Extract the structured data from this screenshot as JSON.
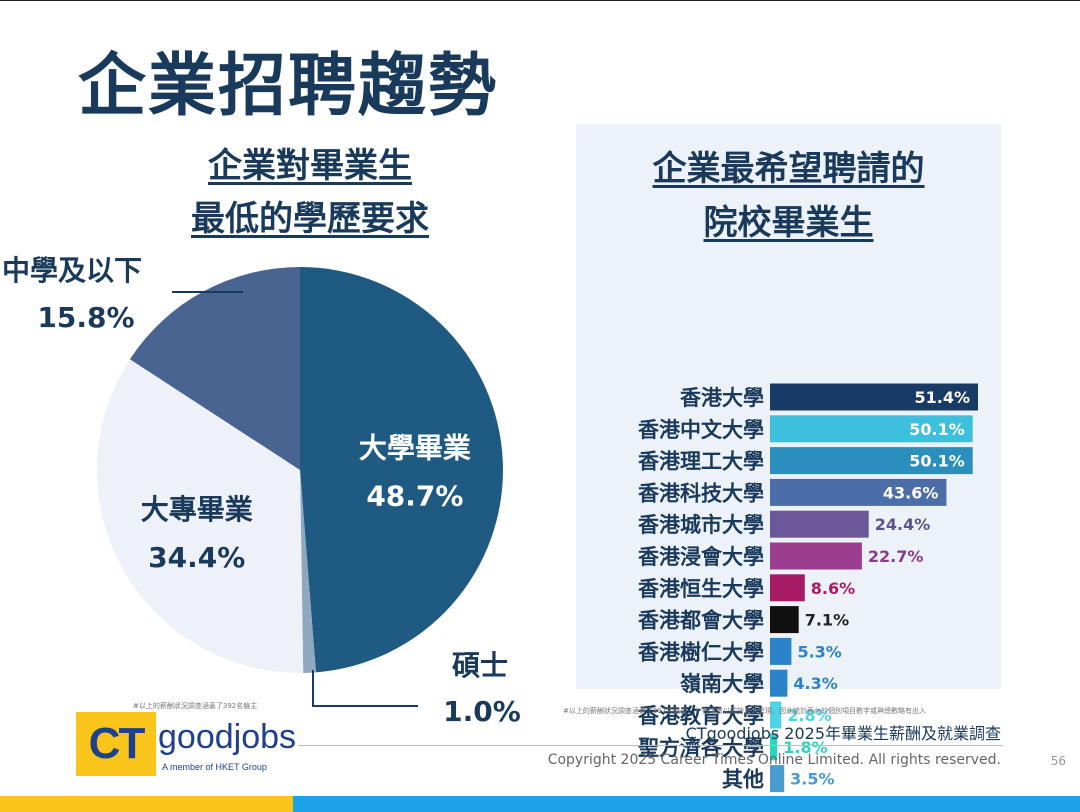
{
  "page": {
    "title": "企業招聘趨勢",
    "page_number": "56",
    "survey_title": "CTgoodjobs 2025年畢業生薪酬及就業調查",
    "copyright": "Copyright 2025 Career Times Online Limited. All rights reserved.",
    "footnote_left": "#以上的薪酬狀況調查涵蓋了392名僱主",
    "footnote_right_1": "#以上的薪酬狀況調查涵蓋了397名僱主",
    "footnote_right_2": "**數字會以四捨五入呈現，因此統計表內的個別項目數字或與總數略有出入"
  },
  "logo": {
    "ct": "CT",
    "goodjobs": "goodjobs",
    "member": "A member of HKET Group",
    "ct_color": "#f9c51a",
    "text_color": "#1f3f8f"
  },
  "chart_data": [
    {
      "type": "pie",
      "title_line1": "企業對畢業生",
      "title_line2": "最低的學歷要求",
      "slices": [
        {
          "label": "大學畢業",
          "value": 48.7,
          "value_label": "48.7%",
          "color": "#1e5a82"
        },
        {
          "label": "碩士",
          "value": 1.0,
          "value_label": "1.0%",
          "color": "#8fa8bf"
        },
        {
          "label": "大專畢業",
          "value": 34.4,
          "value_label": "34.4%",
          "color": "#eef1f7"
        },
        {
          "label": "中學及以下",
          "value": 15.8,
          "value_label": "15.8%",
          "color": "#4a6492"
        }
      ]
    },
    {
      "type": "bar",
      "orientation": "horizontal",
      "title_line1": "企業最希望聘請的",
      "title_line2": "院校畢業生",
      "categories": [
        "香港大學",
        "香港中文大學",
        "香港理工大學",
        "香港科技大學",
        "香港城市大學",
        "香港浸會大學",
        "香港恒生大學",
        "香港都會大學",
        "香港樹仁大學",
        "嶺南大學",
        "香港教育大學",
        "聖方濟各大學",
        "其他"
      ],
      "values": [
        51.4,
        50.1,
        50.1,
        43.6,
        24.4,
        22.7,
        8.6,
        7.1,
        5.3,
        4.3,
        2.8,
        1.8,
        3.5
      ],
      "value_labels": [
        "51.4%",
        "50.1%",
        "50.1%",
        "43.6%",
        "24.4%",
        "22.7%",
        "8.6%",
        "7.1%",
        "5.3%",
        "4.3%",
        "2.8%",
        "1.8%",
        "3.5%"
      ],
      "colors": [
        "#183a66",
        "#3dc0de",
        "#2a8fbd",
        "#4c6ea8",
        "#6b5899",
        "#9c3e8f",
        "#a81b66",
        "#111111",
        "#2b84c8",
        "#2b84c8",
        "#4ed3e8",
        "#2bd4c2",
        "#4a9bd0"
      ],
      "label_colors": [
        "#ffffff",
        "#ffffff",
        "#ffffff",
        "#ffffff",
        "#5e5296",
        "#8a3a8c",
        "#a81b66",
        "#222222",
        "#2b84c8",
        "#2b84c8",
        "#4ed3e8",
        "#2bd4c2",
        "#4a9bd0"
      ]
    }
  ]
}
